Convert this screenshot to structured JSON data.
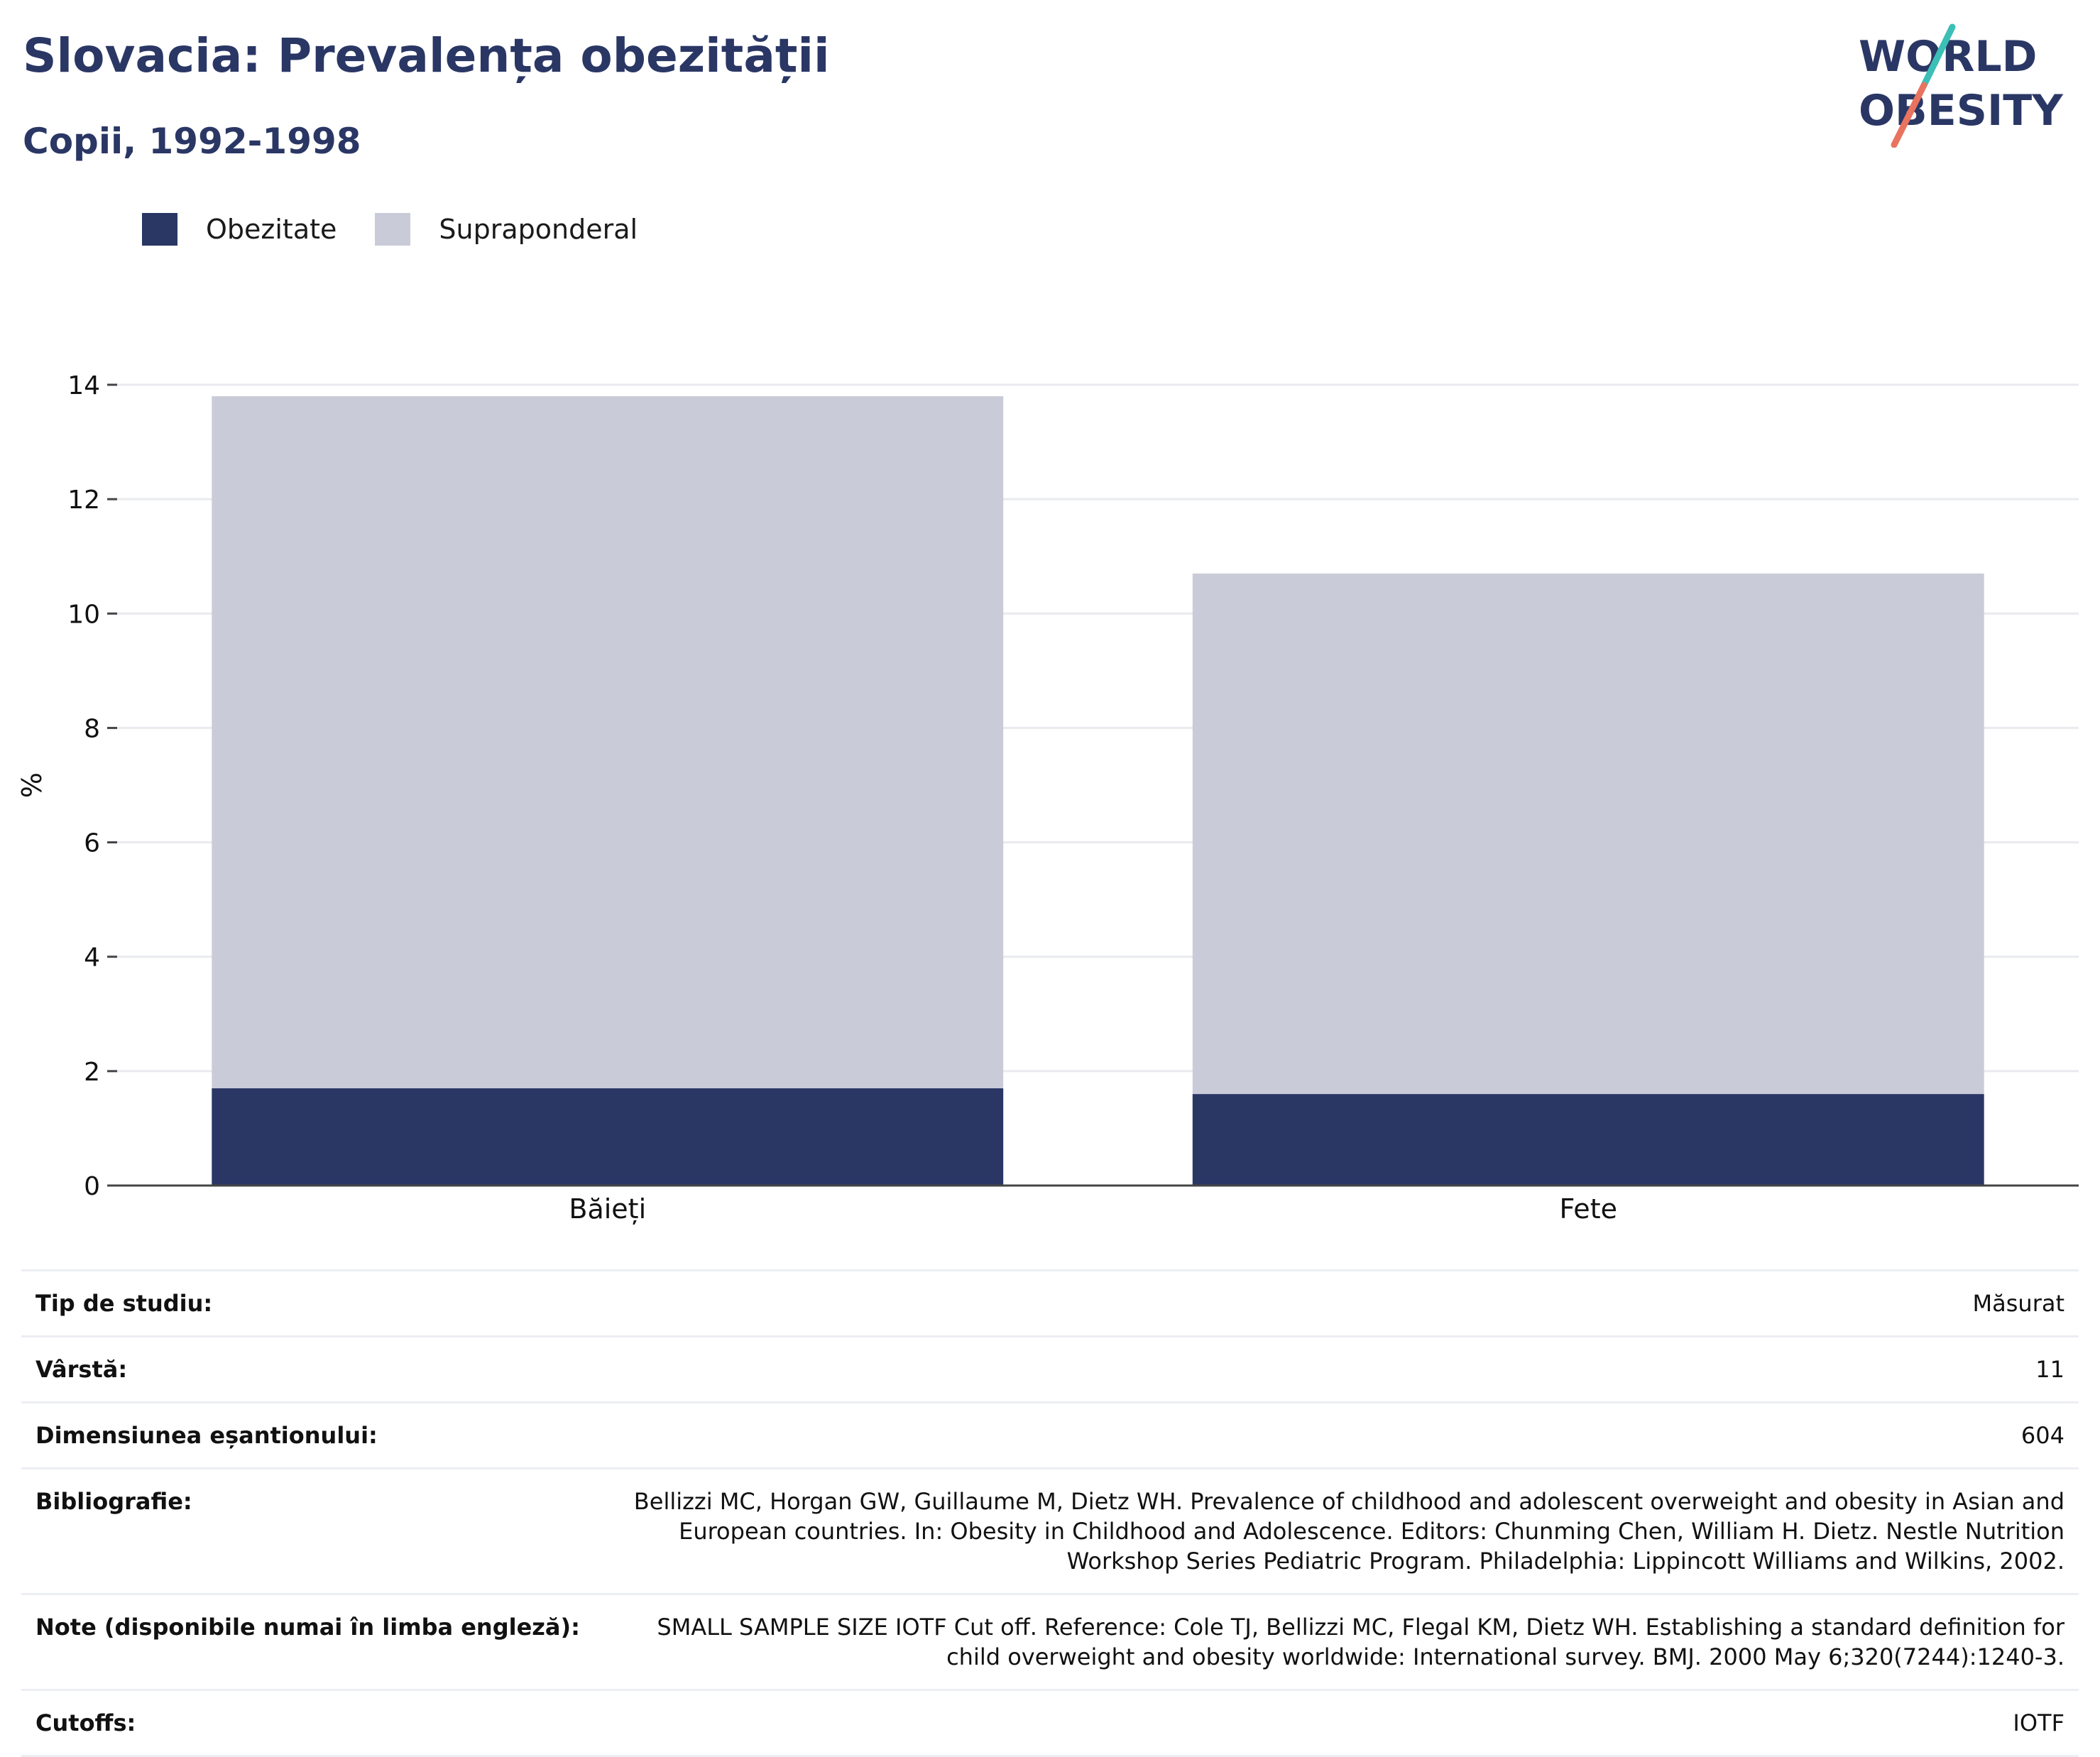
{
  "header": {
    "title": "Slovacia: Prevalența obezității",
    "subtitle": "Copii, 1992-1998",
    "logo_line1": "WORLD",
    "logo_line2": "OBESITY"
  },
  "legend": [
    {
      "label": "Obezitate",
      "color": "#2a3765"
    },
    {
      "label": "Supraponderal",
      "color": "#c9ccd8"
    }
  ],
  "chart_data": {
    "type": "bar",
    "stacked": true,
    "categories": [
      "Băieți",
      "Fete"
    ],
    "series": [
      {
        "name": "Obezitate",
        "values": [
          1.7,
          1.6
        ],
        "color": "#2a3765"
      },
      {
        "name": "Supraponderal",
        "values": [
          12.1,
          9.1
        ],
        "color": "#c9ccd8"
      }
    ],
    "ylabel": "%",
    "ylim": [
      0,
      14
    ],
    "yticks": [
      0,
      2,
      4,
      6,
      8,
      10,
      12,
      14
    ],
    "grid": true
  },
  "info": [
    {
      "key": "Tip de studiu:",
      "value": "Măsurat"
    },
    {
      "key": "Vârstă:",
      "value": "11"
    },
    {
      "key": "Dimensiunea eșantionului:",
      "value": "604"
    },
    {
      "key": "Bibliografie:",
      "value": "Bellizzi MC, Horgan GW, Guillaume M, Dietz WH. Prevalence of childhood and adolescent overweight and obesity in Asian and European countries. In: Obesity in Childhood and Adolescence. Editors: Chunming Chen, William H. Dietz. Nestle Nutrition Workshop Series Pediatric Program. Philadelphia: Lippincott Williams and Wilkins, 2002."
    },
    {
      "key": "Note (disponibile numai în limba engleză):",
      "value": "SMALL SAMPLE SIZE IOTF Cut off. Reference: Cole TJ, Bellizzi MC, Flegal KM, Dietz WH. Establishing a standard definition for child overweight and obesity worldwide: International survey. BMJ. 2000 May 6;320(7244):1240-3."
    },
    {
      "key": "Cutoffs:",
      "value": "IOTF"
    }
  ]
}
